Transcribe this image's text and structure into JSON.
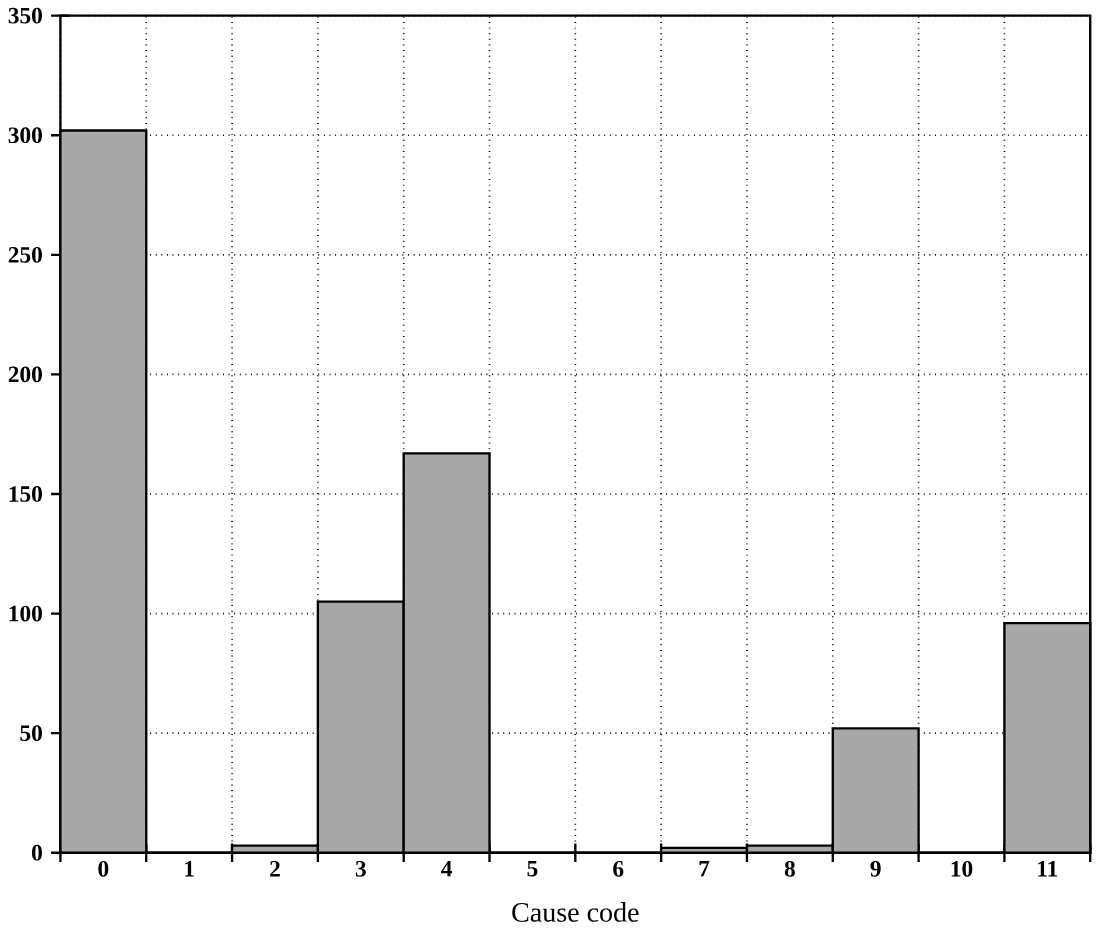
{
  "chart_data": {
    "type": "bar",
    "xlabel": "Cause code",
    "categories": [
      "0",
      "1",
      "2",
      "3",
      "4",
      "5",
      "6",
      "7",
      "8",
      "9",
      "10",
      "11"
    ],
    "values": [
      302,
      0,
      3,
      105,
      167,
      0,
      0,
      2,
      3,
      52,
      0,
      96
    ],
    "color": "#a8a8a8",
    "ylim": [
      0,
      350
    ],
    "yticks": [
      0,
      50,
      100,
      150,
      200,
      250,
      300,
      350
    ],
    "grid": true
  }
}
